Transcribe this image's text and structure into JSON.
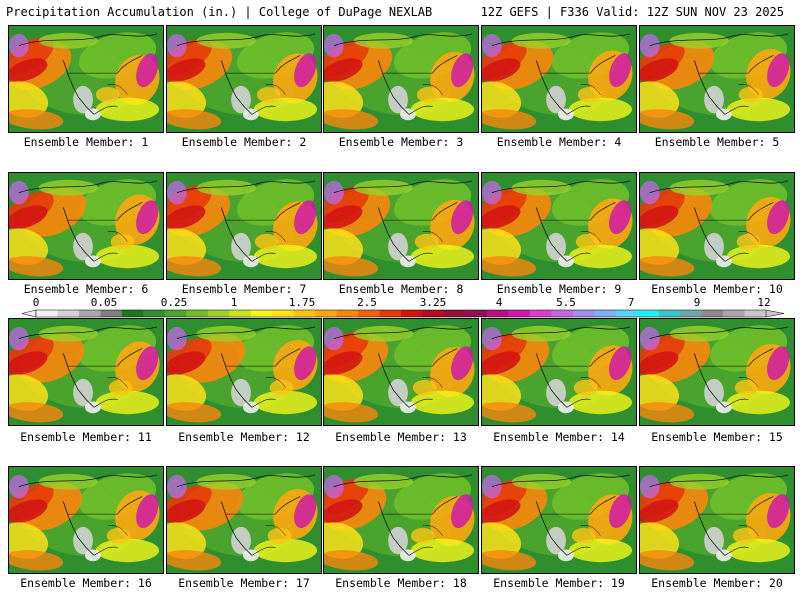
{
  "header": {
    "title": "Precipitation Accumulation (in.) | College of DuPage NEXLAB",
    "run_info": "12Z GEFS | F336 Valid: 12Z SUN NOV 23 2025"
  },
  "members": [
    "Ensemble Member: 1",
    "Ensemble Member: 2",
    "Ensemble Member: 3",
    "Ensemble Member: 4",
    "Ensemble Member: 5",
    "Ensemble Member: 6",
    "Ensemble Member: 7",
    "Ensemble Member: 8",
    "Ensemble Member: 9",
    "Ensemble Member: 10",
    "Ensemble Member: 11",
    "Ensemble Member: 12",
    "Ensemble Member: 13",
    "Ensemble Member: 14",
    "Ensemble Member: 15",
    "Ensemble Member: 16",
    "Ensemble Member: 17",
    "Ensemble Member: 18",
    "Ensemble Member: 19",
    "Ensemble Member: 20"
  ],
  "colorbar": {
    "tick_labels": [
      "0",
      "0.05",
      "0.25",
      "1",
      "1.75",
      "2.5",
      "3.25",
      "4",
      "5.5",
      "7",
      "9",
      "12"
    ],
    "colors": [
      "#f0f0f0",
      "#d2d2d2",
      "#a8a8a8",
      "#7f7f7f",
      "#1a7a1a",
      "#2f8f2f",
      "#4ea52c",
      "#6fbf2a",
      "#9ad12a",
      "#c8e41f",
      "#f4f61a",
      "#fbe21a",
      "#fdc314",
      "#fca70f",
      "#f8860c",
      "#f2620a",
      "#e53b0a",
      "#d11612",
      "#b40f1e",
      "#951236",
      "#8e1257",
      "#b7127c",
      "#d01aa7",
      "#d73cd3",
      "#c167e8",
      "#9f8df0",
      "#7db0f4",
      "#56d5f5",
      "#1ff0f0",
      "#39c8c8",
      "#6aaaaa",
      "#8a8a8a",
      "#a8a8a8",
      "#c8c8c8"
    ]
  }
}
